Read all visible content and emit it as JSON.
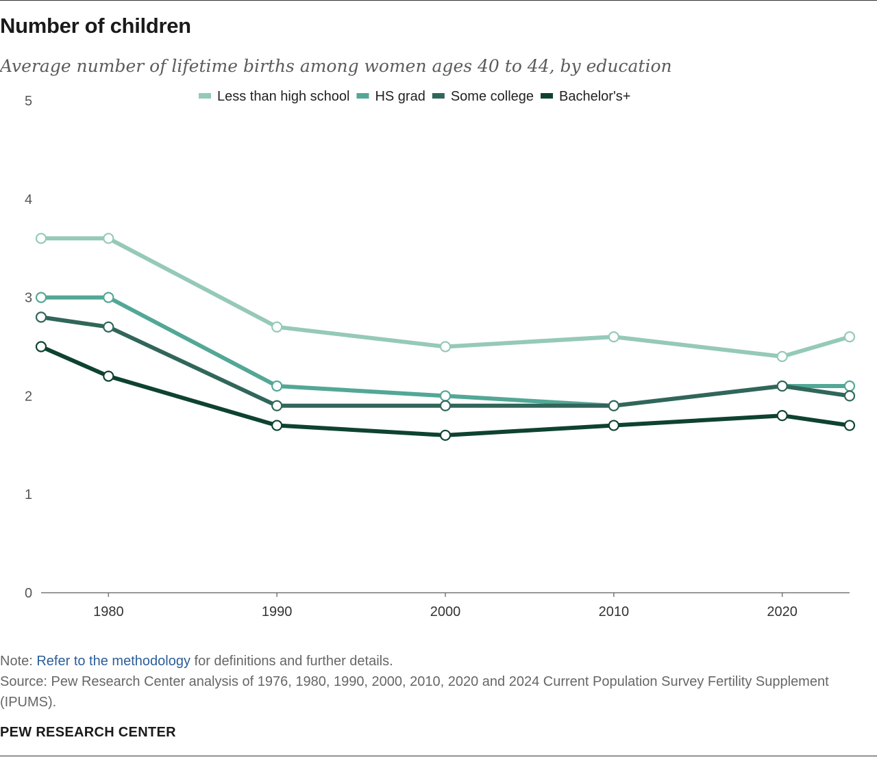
{
  "title": "Number of children",
  "subtitle": "Average number of lifetime births among women ages 40 to 44, by education",
  "note": {
    "prefix": "Note: ",
    "link_text": "Refer to the methodology",
    "suffix": " for definitions and further details."
  },
  "source": "Source: Pew Research Center analysis of 1976, 1980, 1990, 2000, 2010, 2020 and 2024 Current Population Survey Fertility Supplement (IPUMS).",
  "credit": "PEW RESEARCH CENTER",
  "chart_data": {
    "type": "line",
    "title": "Number of children",
    "xlabel": "",
    "ylabel": "",
    "x": [
      1976,
      1980,
      1990,
      2000,
      2010,
      2020,
      2024
    ],
    "xlim": [
      1976,
      2024
    ],
    "ylim": [
      0,
      5
    ],
    "x_ticks": [
      1980,
      1990,
      2000,
      2010,
      2020
    ],
    "x_tick_labels": [
      "1980",
      "1990",
      "2000",
      "2010",
      "2020"
    ],
    "y_ticks": [
      0,
      1,
      2,
      3,
      4,
      5
    ],
    "y_tick_labels": [
      "0",
      "1",
      "2",
      "3",
      "4",
      "5"
    ],
    "legend_position": "top-center",
    "series": [
      {
        "name": "Less than high school",
        "color": "#95c9b9",
        "values": [
          3.6,
          3.6,
          2.7,
          2.5,
          2.6,
          2.4,
          2.6
        ]
      },
      {
        "name": "HS grad",
        "color": "#53a796",
        "values": [
          3.0,
          3.0,
          2.1,
          2.0,
          1.9,
          2.1,
          2.1
        ]
      },
      {
        "name": "Some college",
        "color": "#31665a",
        "values": [
          2.8,
          2.7,
          1.9,
          1.9,
          1.9,
          2.1,
          2.0
        ]
      },
      {
        "name": "Bachelor's+",
        "color": "#0e4231",
        "values": [
          2.5,
          2.2,
          1.7,
          1.6,
          1.7,
          1.8,
          1.7
        ]
      }
    ]
  }
}
